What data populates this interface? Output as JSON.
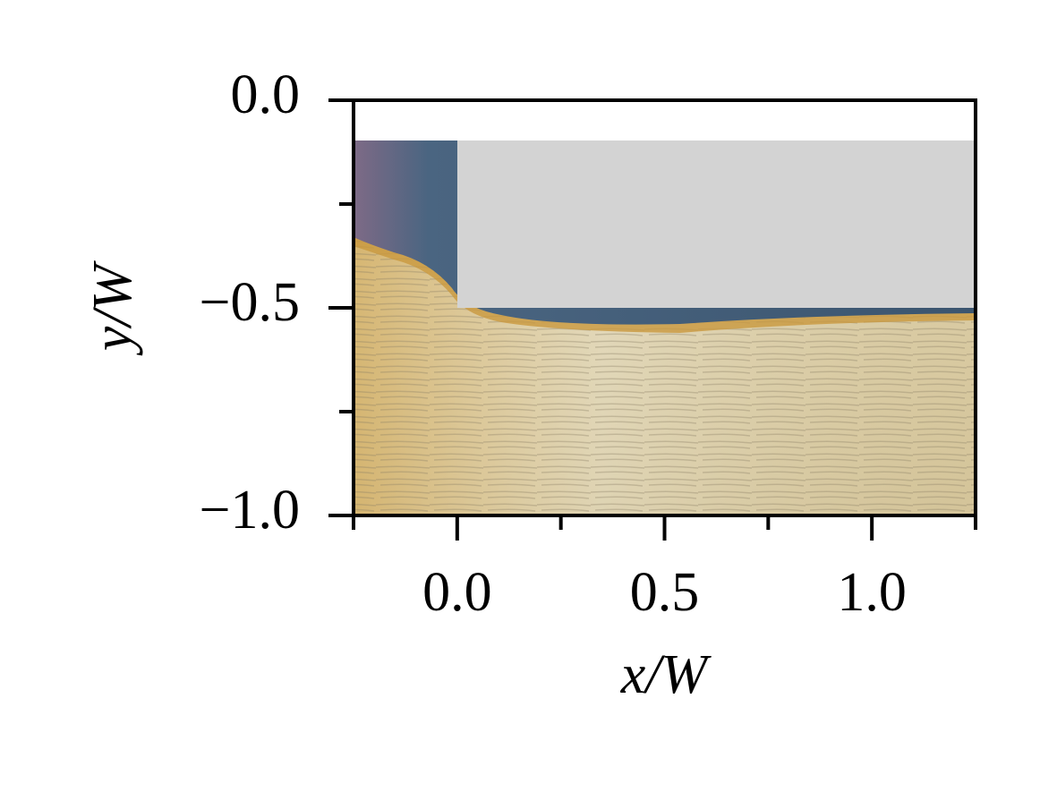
{
  "chart_data": {
    "type": "field",
    "xlabel": "x/W",
    "ylabel": "y/W",
    "xlim": [
      -0.25,
      1.25
    ],
    "ylim": [
      -1,
      0
    ],
    "xticks": [
      {
        "value": 0,
        "label": "0.0"
      },
      {
        "value": 0.5,
        "label": "0.5"
      },
      {
        "value": 1,
        "label": "1.0"
      }
    ],
    "yticks": [
      {
        "value": 0,
        "label": "0.0"
      },
      {
        "value": -0.5,
        "label": "−0.5"
      },
      {
        "value": -1,
        "label": "−1.0"
      }
    ],
    "xminorticks": [
      -0.25,
      0.25,
      0.75,
      1.25
    ],
    "yminorticks": [
      -0.25,
      -0.75
    ]
  }
}
